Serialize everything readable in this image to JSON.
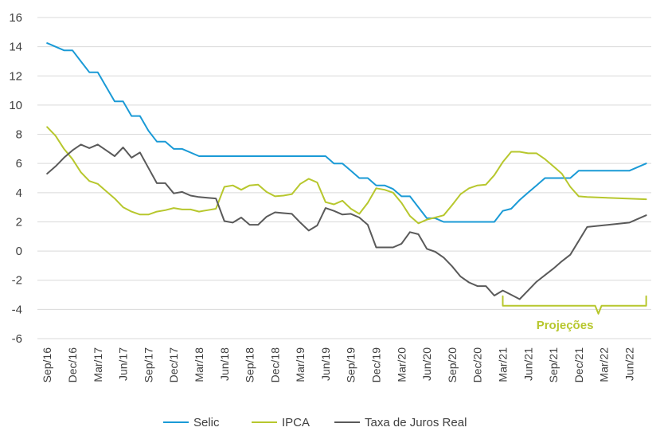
{
  "chart_data": {
    "type": "line",
    "title": "",
    "xlabel": "",
    "ylabel": "",
    "ylim": [
      -6,
      16
    ],
    "yticks": [
      16,
      14,
      12,
      10,
      8,
      6,
      4,
      2,
      0,
      -2,
      -4,
      -6
    ],
    "grid": "horizontal",
    "legend_position": "bottom",
    "x_start": "2016-09",
    "x_end": "2022-08",
    "x_tick_labels": [
      "Sep/16",
      "Dec/16",
      "Mar/17",
      "Jun/17",
      "Sep/17",
      "Dec/17",
      "Mar/18",
      "Jun/18",
      "Sep/18",
      "Dec/18",
      "Mar/19",
      "Jun/19",
      "Sep/19",
      "Dec/19",
      "Mar/20",
      "Jun/20",
      "Sep/20",
      "Dec/20",
      "Mar/21",
      "Jun/21",
      "Sep/21",
      "Dec/21",
      "Mar/22",
      "Jun/22"
    ],
    "series": [
      {
        "name": "Selic",
        "color": "#1a9ad6",
        "points": [
          [
            "2016-09",
            14.25
          ],
          [
            "2016-11",
            13.75
          ],
          [
            "2016-12",
            13.75
          ],
          [
            "2017-01",
            13.0
          ],
          [
            "2017-02",
            12.25
          ],
          [
            "2017-03",
            12.25
          ],
          [
            "2017-04",
            11.25
          ],
          [
            "2017-05",
            10.25
          ],
          [
            "2017-06",
            10.25
          ],
          [
            "2017-07",
            9.25
          ],
          [
            "2017-08",
            9.25
          ],
          [
            "2017-09",
            8.25
          ],
          [
            "2017-10",
            7.5
          ],
          [
            "2017-11",
            7.5
          ],
          [
            "2017-12",
            7.0
          ],
          [
            "2018-01",
            7.0
          ],
          [
            "2018-03",
            6.5
          ],
          [
            "2018-06",
            6.5
          ],
          [
            "2018-09",
            6.5
          ],
          [
            "2018-12",
            6.5
          ],
          [
            "2019-03",
            6.5
          ],
          [
            "2019-06",
            6.5
          ],
          [
            "2019-07",
            6.0
          ],
          [
            "2019-08",
            6.0
          ],
          [
            "2019-09",
            5.5
          ],
          [
            "2019-10",
            5.0
          ],
          [
            "2019-11",
            5.0
          ],
          [
            "2019-12",
            4.5
          ],
          [
            "2020-01",
            4.5
          ],
          [
            "2020-02",
            4.25
          ],
          [
            "2020-03",
            3.75
          ],
          [
            "2020-04",
            3.75
          ],
          [
            "2020-05",
            3.0
          ],
          [
            "2020-06",
            2.25
          ],
          [
            "2020-07",
            2.25
          ],
          [
            "2020-08",
            2.0
          ],
          [
            "2020-12",
            2.0
          ],
          [
            "2021-02",
            2.0
          ],
          [
            "2021-03",
            2.75
          ],
          [
            "2021-04",
            2.9
          ],
          [
            "2021-05",
            3.5
          ],
          [
            "2021-06",
            4.0
          ],
          [
            "2021-07",
            4.5
          ],
          [
            "2021-08",
            5.0
          ],
          [
            "2021-09",
            5.0
          ],
          [
            "2021-10",
            5.0
          ],
          [
            "2021-11",
            5.0
          ],
          [
            "2021-12",
            5.5
          ],
          [
            "2022-06",
            5.5
          ],
          [
            "2022-08",
            6.0
          ]
        ]
      },
      {
        "name": "IPCA",
        "color": "#b7c72d",
        "points": [
          [
            "2016-09",
            8.5
          ],
          [
            "2016-10",
            7.9
          ],
          [
            "2016-11",
            7.0
          ],
          [
            "2016-12",
            6.3
          ],
          [
            "2017-01",
            5.4
          ],
          [
            "2017-02",
            4.8
          ],
          [
            "2017-03",
            4.6
          ],
          [
            "2017-04",
            4.1
          ],
          [
            "2017-05",
            3.6
          ],
          [
            "2017-06",
            3.0
          ],
          [
            "2017-07",
            2.7
          ],
          [
            "2017-08",
            2.5
          ],
          [
            "2017-09",
            2.5
          ],
          [
            "2017-10",
            2.7
          ],
          [
            "2017-11",
            2.8
          ],
          [
            "2017-12",
            2.95
          ],
          [
            "2018-01",
            2.85
          ],
          [
            "2018-02",
            2.85
          ],
          [
            "2018-03",
            2.7
          ],
          [
            "2018-04",
            2.8
          ],
          [
            "2018-05",
            2.9
          ],
          [
            "2018-06",
            4.4
          ],
          [
            "2018-07",
            4.5
          ],
          [
            "2018-08",
            4.2
          ],
          [
            "2018-09",
            4.5
          ],
          [
            "2018-10",
            4.55
          ],
          [
            "2018-11",
            4.05
          ],
          [
            "2018-12",
            3.75
          ],
          [
            "2019-01",
            3.8
          ],
          [
            "2019-02",
            3.9
          ],
          [
            "2019-03",
            4.6
          ],
          [
            "2019-04",
            4.95
          ],
          [
            "2019-05",
            4.7
          ],
          [
            "2019-06",
            3.35
          ],
          [
            "2019-07",
            3.2
          ],
          [
            "2019-08",
            3.45
          ],
          [
            "2019-09",
            2.9
          ],
          [
            "2019-10",
            2.55
          ],
          [
            "2019-11",
            3.3
          ],
          [
            "2019-12",
            4.3
          ],
          [
            "2020-01",
            4.2
          ],
          [
            "2020-02",
            4.0
          ],
          [
            "2020-03",
            3.3
          ],
          [
            "2020-04",
            2.4
          ],
          [
            "2020-05",
            1.9
          ],
          [
            "2020-06",
            2.15
          ],
          [
            "2020-07",
            2.3
          ],
          [
            "2020-08",
            2.45
          ],
          [
            "2020-09",
            3.15
          ],
          [
            "2020-10",
            3.9
          ],
          [
            "2020-11",
            4.3
          ],
          [
            "2020-12",
            4.5
          ],
          [
            "2021-01",
            4.55
          ],
          [
            "2021-02",
            5.2
          ],
          [
            "2021-03",
            6.1
          ],
          [
            "2021-04",
            6.8
          ],
          [
            "2021-05",
            6.8
          ],
          [
            "2021-06",
            6.7
          ],
          [
            "2021-07",
            6.7
          ],
          [
            "2021-08",
            6.3
          ],
          [
            "2021-09",
            5.8
          ],
          [
            "2021-10",
            5.3
          ],
          [
            "2021-11",
            4.4
          ],
          [
            "2021-12",
            3.75
          ],
          [
            "2022-01",
            3.7
          ],
          [
            "2022-08",
            3.55
          ]
        ]
      },
      {
        "name": "Taxa de Juros Real",
        "color": "#5a5a5a",
        "points": [
          [
            "2016-09",
            5.3
          ],
          [
            "2016-10",
            5.8
          ],
          [
            "2016-11",
            6.4
          ],
          [
            "2016-12",
            6.9
          ],
          [
            "2017-01",
            7.3
          ],
          [
            "2017-02",
            7.05
          ],
          [
            "2017-03",
            7.3
          ],
          [
            "2017-04",
            6.9
          ],
          [
            "2017-05",
            6.5
          ],
          [
            "2017-06",
            7.1
          ],
          [
            "2017-07",
            6.4
          ],
          [
            "2017-08",
            6.75
          ],
          [
            "2017-09",
            5.7
          ],
          [
            "2017-10",
            4.65
          ],
          [
            "2017-11",
            4.65
          ],
          [
            "2017-12",
            3.95
          ],
          [
            "2018-01",
            4.05
          ],
          [
            "2018-02",
            3.8
          ],
          [
            "2018-03",
            3.7
          ],
          [
            "2018-04",
            3.65
          ],
          [
            "2018-05",
            3.6
          ],
          [
            "2018-06",
            2.05
          ],
          [
            "2018-07",
            1.95
          ],
          [
            "2018-08",
            2.3
          ],
          [
            "2018-09",
            1.8
          ],
          [
            "2018-10",
            1.8
          ],
          [
            "2018-11",
            2.35
          ],
          [
            "2018-12",
            2.65
          ],
          [
            "2019-01",
            2.6
          ],
          [
            "2019-02",
            2.55
          ],
          [
            "2019-03",
            1.95
          ],
          [
            "2019-04",
            1.4
          ],
          [
            "2019-05",
            1.75
          ],
          [
            "2019-06",
            2.95
          ],
          [
            "2019-07",
            2.75
          ],
          [
            "2019-08",
            2.5
          ],
          [
            "2019-09",
            2.55
          ],
          [
            "2019-10",
            2.3
          ],
          [
            "2019-11",
            1.8
          ],
          [
            "2019-12",
            0.25
          ],
          [
            "2020-01",
            0.25
          ],
          [
            "2020-02",
            0.25
          ],
          [
            "2020-03",
            0.5
          ],
          [
            "2020-04",
            1.3
          ],
          [
            "2020-05",
            1.15
          ],
          [
            "2020-06",
            0.15
          ],
          [
            "2020-07",
            -0.05
          ],
          [
            "2020-08",
            -0.45
          ],
          [
            "2020-09",
            -1.05
          ],
          [
            "2020-10",
            -1.75
          ],
          [
            "2020-11",
            -2.15
          ],
          [
            "2020-12",
            -2.4
          ],
          [
            "2021-01",
            -2.4
          ],
          [
            "2021-02",
            -3.05
          ],
          [
            "2021-03",
            -2.7
          ],
          [
            "2021-04",
            -3.0
          ],
          [
            "2021-05",
            -3.3
          ],
          [
            "2021-06",
            -2.7
          ],
          [
            "2021-07",
            -2.1
          ],
          [
            "2021-08",
            -1.65
          ],
          [
            "2021-09",
            -1.2
          ],
          [
            "2021-10",
            -0.7
          ],
          [
            "2021-11",
            -0.25
          ],
          [
            "2021-12",
            0.7
          ],
          [
            "2022-01",
            1.65
          ],
          [
            "2022-06",
            1.95
          ],
          [
            "2022-08",
            2.45
          ]
        ]
      }
    ],
    "annotation": {
      "label": "Projeções",
      "color": "#b7c72d",
      "x_start": "2021-03",
      "x_end": "2022-08",
      "y": -3.75
    }
  }
}
